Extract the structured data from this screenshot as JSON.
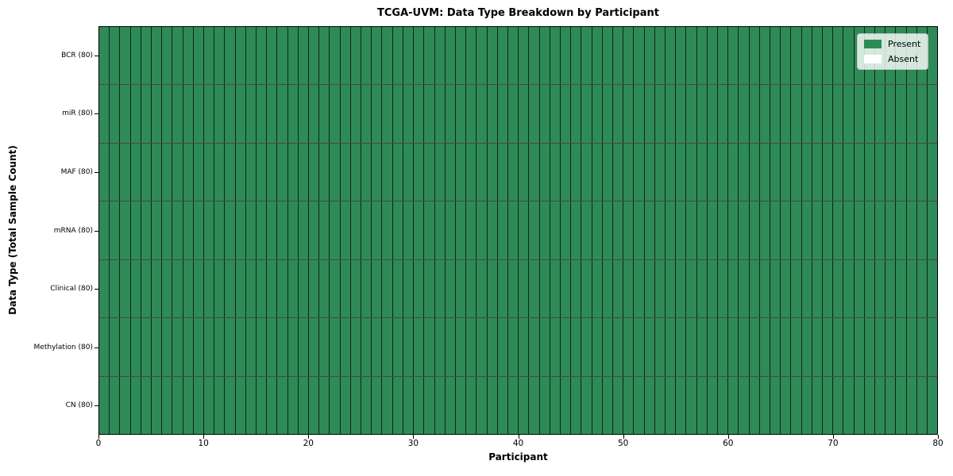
{
  "chart_data": {
    "type": "heatmap",
    "title": "TCGA-UVM: Data Type Breakdown by Participant",
    "xlabel": "Participant",
    "ylabel": "Data Type (Total Sample Count)",
    "xlim": [
      0,
      80
    ],
    "x_ticks": [
      0,
      10,
      20,
      30,
      40,
      50,
      60,
      70,
      80
    ],
    "n_participants": 80,
    "grid": "cell-borders",
    "rows": [
      {
        "label": "BCR (80)",
        "total_samples": 80,
        "present_count": 80,
        "absent_count": 0
      },
      {
        "label": "miR (80)",
        "total_samples": 80,
        "present_count": 80,
        "absent_count": 0
      },
      {
        "label": "MAF (80)",
        "total_samples": 80,
        "present_count": 80,
        "absent_count": 0
      },
      {
        "label": "mRNA (80)",
        "total_samples": 80,
        "present_count": 80,
        "absent_count": 0
      },
      {
        "label": "Clinical (80)",
        "total_samples": 80,
        "present_count": 80,
        "absent_count": 0
      },
      {
        "label": "Methylation (80)",
        "total_samples": 80,
        "present_count": 80,
        "absent_count": 0
      },
      {
        "label": "CN (80)",
        "total_samples": 80,
        "present_count": 80,
        "absent_count": 0
      }
    ],
    "all_cells_present": true,
    "legend": {
      "position": "upper-right",
      "entries": [
        {
          "label": "Present",
          "color": "#2e8b57"
        },
        {
          "label": "Absent",
          "color": "#ffffff"
        }
      ]
    },
    "colors": {
      "present": "#2e8b57",
      "absent": "#ffffff",
      "cell_edge": "#000000",
      "spine": "#000000",
      "legend_border": "#c8c8c8"
    }
  }
}
